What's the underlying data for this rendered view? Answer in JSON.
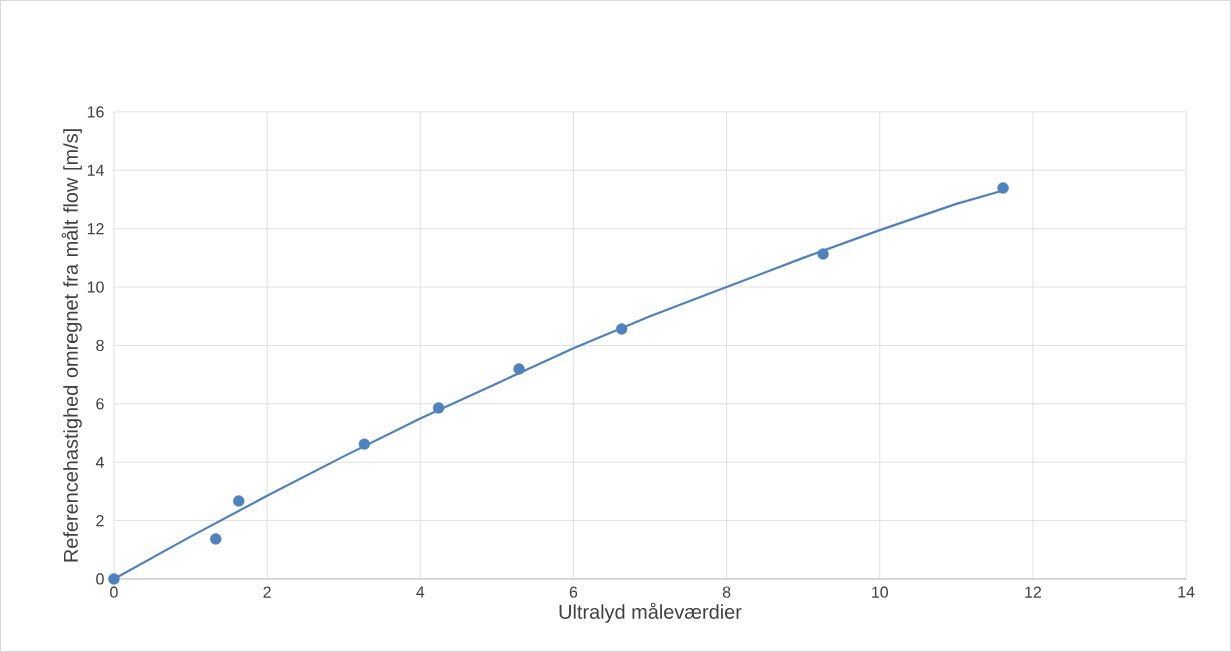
{
  "chart_data": {
    "type": "scatter",
    "xlabel": "Ultralyd måleværdier",
    "ylabel": "Referencehastighed omregnet fra målt flow [m/s]",
    "xlim": [
      0,
      14
    ],
    "ylim": [
      0,
      16
    ],
    "xticks": [
      0,
      2,
      4,
      6,
      8,
      10,
      12,
      14
    ],
    "yticks": [
      0,
      2,
      4,
      6,
      8,
      10,
      12,
      14,
      16
    ],
    "grid": true,
    "series": [
      {
        "type": "scatter",
        "color": "#4f81bd",
        "marker": "circle",
        "x": [
          0,
          1.33,
          1.63,
          3.27,
          4.24,
          5.29,
          6.63,
          9.26,
          11.61
        ],
        "values": [
          0,
          1.37,
          2.67,
          4.62,
          5.86,
          7.19,
          8.56,
          11.13,
          13.39
        ]
      },
      {
        "type": "line",
        "color": "#4f81bd",
        "marker": "none",
        "x": [
          0,
          1,
          2,
          3,
          4,
          5,
          6,
          7,
          8,
          9,
          10,
          11,
          11.6
        ],
        "values": [
          0,
          1.45,
          2.85,
          4.2,
          5.5,
          6.7,
          7.9,
          9.0,
          10.0,
          11.0,
          11.95,
          12.85,
          13.3
        ]
      }
    ]
  }
}
